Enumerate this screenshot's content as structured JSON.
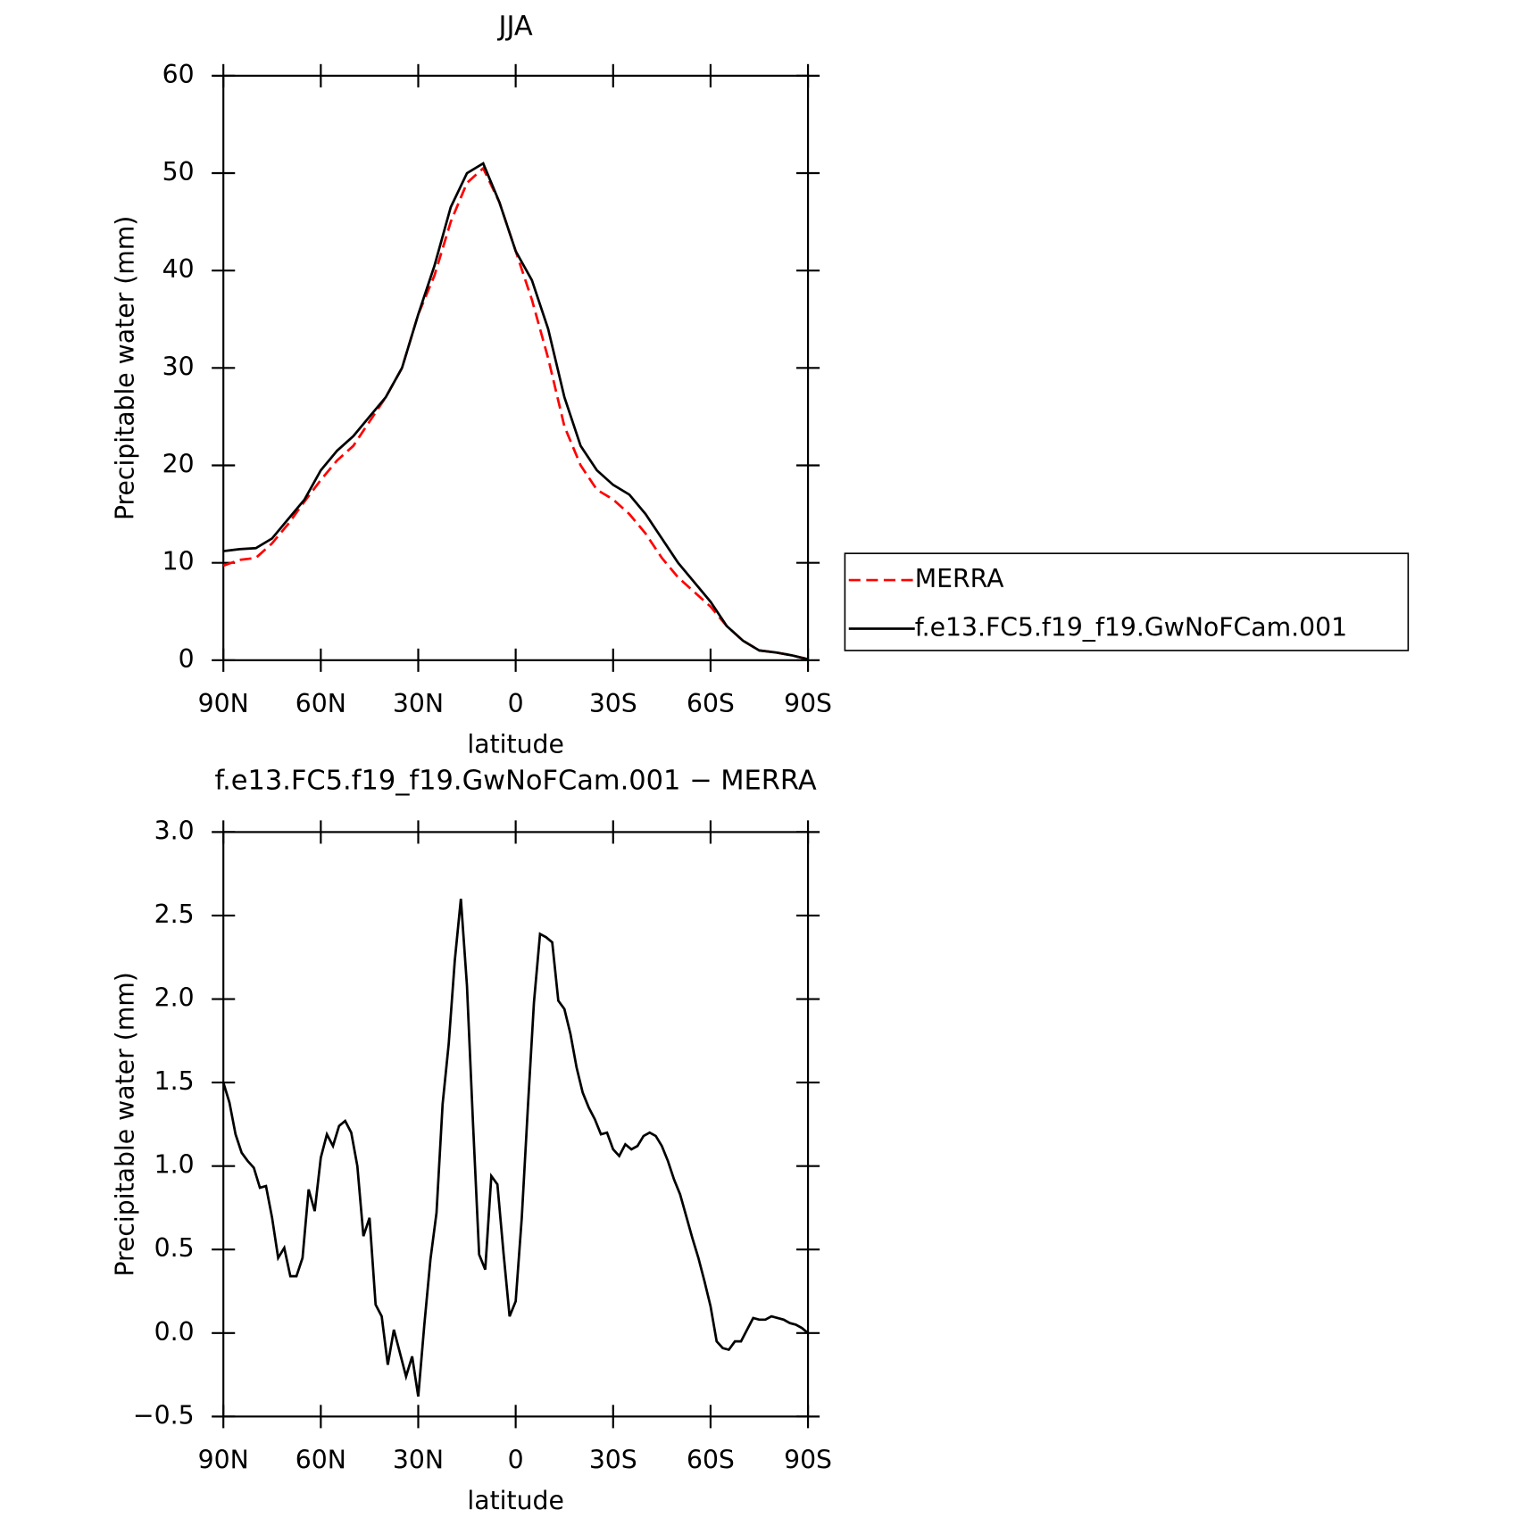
{
  "chart_data": [
    {
      "type": "line",
      "title": "JJA",
      "xlabel": "latitude",
      "ylabel": "Precipitable water (mm)",
      "x": [
        90,
        85,
        80,
        75,
        70,
        65,
        60,
        55,
        50,
        45,
        40,
        35,
        30,
        25,
        20,
        15,
        10,
        5,
        0,
        -5,
        -10,
        -15,
        -20,
        -25,
        -30,
        -35,
        -40,
        -45,
        -50,
        -55,
        -60,
        -65,
        -70,
        -75,
        -80,
        -85,
        -90
      ],
      "series": [
        {
          "name": "MERRA",
          "color": "#ff0000",
          "dashed": true,
          "values": [
            9.7,
            10.3,
            10.5,
            12,
            14,
            16.3,
            18.5,
            20.5,
            22,
            24.5,
            27,
            30,
            35.5,
            39.5,
            45,
            49,
            50.5,
            47,
            42,
            37,
            31,
            24,
            20,
            17.5,
            16.5,
            15,
            13,
            10.5,
            8.5,
            7,
            5.5,
            3.5,
            2,
            1,
            0.8,
            0.5,
            0.1
          ]
        },
        {
          "name": "f.e13.FC5.f19_f19.GwNoFCam.001",
          "color": "#000000",
          "dashed": false,
          "values": [
            11.2,
            11.4,
            11.5,
            12.5,
            14.5,
            16.5,
            19.5,
            21.5,
            23,
            25,
            27,
            30,
            35.5,
            40.5,
            46.5,
            50,
            51,
            47,
            42,
            39,
            34,
            27,
            22,
            19.5,
            18,
            17,
            15,
            12.5,
            10,
            8,
            6,
            3.5,
            2,
            1,
            0.8,
            0.5,
            0.1
          ]
        }
      ],
      "xlim": [
        90,
        -90
      ],
      "xticks": [
        {
          "value": 90,
          "label": "90N"
        },
        {
          "value": 60,
          "label": "60N"
        },
        {
          "value": 30,
          "label": "30N"
        },
        0,
        {
          "value": -30,
          "label": "30S"
        },
        {
          "value": -60,
          "label": "60S"
        },
        {
          "value": -90,
          "label": "90S"
        }
      ],
      "ylim": [
        0,
        60
      ],
      "yticks": [
        0,
        10,
        20,
        30,
        40,
        50,
        60
      ],
      "legend": "right"
    },
    {
      "type": "line",
      "title": "f.e13.FC5.f19_f19.GwNoFCam.001 − MERRA",
      "xlabel": "latitude",
      "ylabel": "Precipitable water (mm)",
      "x": [
        90,
        88.125,
        86.25,
        84.375,
        82.5,
        80.625,
        78.75,
        76.875,
        75,
        73.125,
        71.25,
        69.375,
        67.5,
        65.625,
        63.75,
        61.875,
        60,
        58.125,
        56.25,
        54.375,
        52.5,
        50.625,
        48.75,
        46.875,
        45,
        43.125,
        41.25,
        39.375,
        37.5,
        35.625,
        33.75,
        31.875,
        30,
        28.125,
        26.25,
        24.375,
        22.5,
        20.625,
        18.75,
        16.875,
        15,
        13.125,
        11.25,
        9.375,
        7.5,
        5.625,
        3.75,
        1.875,
        0,
        -1.875,
        -3.75,
        -5.625,
        -7.5,
        -9.375,
        -11.25,
        -13.125,
        -15,
        -16.875,
        -18.75,
        -20.625,
        -22.5,
        -24.375,
        -26.25,
        -28.125,
        -30,
        -31.875,
        -33.75,
        -35.625,
        -37.5,
        -39.375,
        -41.25,
        -43.125,
        -45,
        -46.875,
        -48.75,
        -50.625,
        -52.5,
        -54.375,
        -56.25,
        -58.125,
        -60,
        -61.875,
        -63.75,
        -65.625,
        -67.5,
        -69.375,
        -71.25,
        -73.125,
        -75,
        -76.875,
        -78.75,
        -80.625,
        -82.5,
        -84.375,
        -86.25,
        -88.125,
        -90
      ],
      "series": [
        {
          "name": "f.e13.FC5.f19_f19.GwNoFCam.001 − MERRA",
          "color": "#000000",
          "dashed": false,
          "values": [
            1.5,
            1.38,
            1.19,
            1.08,
            1.03,
            0.99,
            0.87,
            0.88,
            0.69,
            0.45,
            0.51,
            0.34,
            0.34,
            0.45,
            0.86,
            0.73,
            1.05,
            1.19,
            1.12,
            1.24,
            1.27,
            1.2,
            1.0,
            0.58,
            0.69,
            0.17,
            0.1,
            -0.19,
            0.02,
            -0.12,
            -0.26,
            -0.14,
            -0.38,
            0.05,
            0.44,
            0.72,
            1.37,
            1.73,
            2.23,
            2.6,
            2.08,
            1.25,
            0.47,
            0.38,
            0.94,
            0.89,
            0.48,
            0.1,
            0.19,
            0.69,
            1.35,
            1.98,
            2.39,
            2.37,
            2.34,
            1.99,
            1.94,
            1.79,
            1.59,
            1.44,
            1.35,
            1.28,
            1.19,
            1.2,
            1.1,
            1.06,
            1.13,
            1.1,
            1.12,
            1.18,
            1.2,
            1.18,
            1.12,
            1.03,
            0.92,
            0.83,
            0.7,
            0.57,
            0.45,
            0.31,
            0.16,
            -0.05,
            -0.09,
            -0.1,
            -0.05,
            -0.05,
            0.02,
            0.09,
            0.08,
            0.08,
            0.1,
            0.09,
            0.08,
            0.06,
            0.05,
            0.03,
            0.0
          ]
        }
      ],
      "xlim": [
        90,
        -90
      ],
      "xticks": [
        {
          "value": 90,
          "label": "90N"
        },
        {
          "value": 60,
          "label": "60N"
        },
        {
          "value": 30,
          "label": "30N"
        },
        0,
        {
          "value": -30,
          "label": "30S"
        },
        {
          "value": -60,
          "label": "60S"
        },
        {
          "value": -90,
          "label": "90S"
        }
      ],
      "ylim": [
        -0.5,
        3
      ],
      "yticks": [
        {
          "value": -0.5,
          "label": "−0.5"
        },
        {
          "value": 0,
          "label": "0.0"
        },
        0.5,
        {
          "value": 1,
          "label": "1.0"
        },
        1.5,
        {
          "value": 2,
          "label": "2.0"
        },
        2.5,
        {
          "value": 3,
          "label": "3.0"
        }
      ]
    }
  ]
}
